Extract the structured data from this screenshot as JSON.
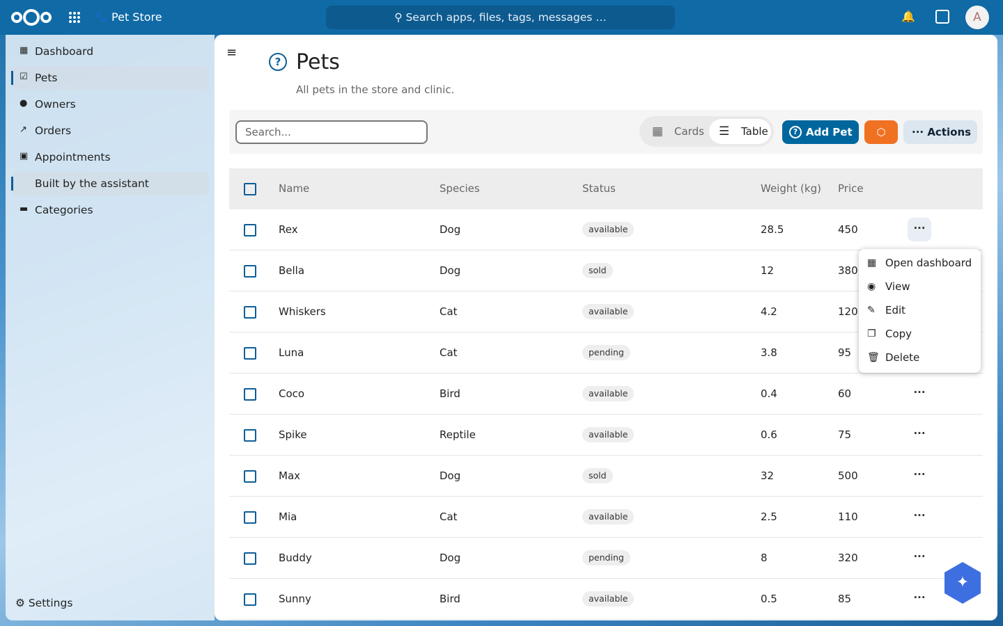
{
  "header": {
    "app_name": "Pet Store",
    "search": "Search apps, files, tags, messages …",
    "avatar": "A"
  },
  "navigation": {
    "items": [
      "Dashboard",
      "Pets",
      "Owners",
      "Orders",
      "Appointments",
      "Built by the assistant",
      "Categories"
    ],
    "active": [
      1,
      5
    ],
    "settings": "Settings"
  },
  "page": {
    "title": "Pets",
    "subtitle": "All pets in the store and clinic."
  },
  "toolbar": {
    "search": "Search...",
    "views": [
      "Cards",
      "Table"
    ],
    "active_view": 1,
    "add": "Add Pet",
    "actions": "Actions"
  },
  "table": {
    "columns": [
      "Name",
      "Species",
      "Status",
      "Weight (kg)",
      "Price"
    ],
    "rows": [
      [
        "Rex",
        "Dog",
        "available",
        28.5,
        450
      ],
      [
        "Bella",
        "Dog",
        "sold",
        12,
        380
      ],
      [
        "Whiskers",
        "Cat",
        "available",
        4.2,
        120
      ],
      [
        "Luna",
        "Cat",
        "pending",
        3.8,
        95
      ],
      [
        "Coco",
        "Bird",
        "available",
        0.4,
        60
      ],
      [
        "Spike",
        "Reptile",
        "available",
        0.6,
        75
      ],
      [
        "Max",
        "Dog",
        "sold",
        32,
        500
      ],
      [
        "Mia",
        "Cat",
        "available",
        2.5,
        110
      ],
      [
        "Buddy",
        "Dog",
        "pending",
        8,
        320
      ],
      [
        "Sunny",
        "Bird",
        "available",
        0.5,
        85
      ]
    ]
  },
  "menu": {
    "row": 0,
    "items": [
      "Open dashboard",
      "View",
      "Edit",
      "Copy",
      "Delete"
    ]
  }
}
